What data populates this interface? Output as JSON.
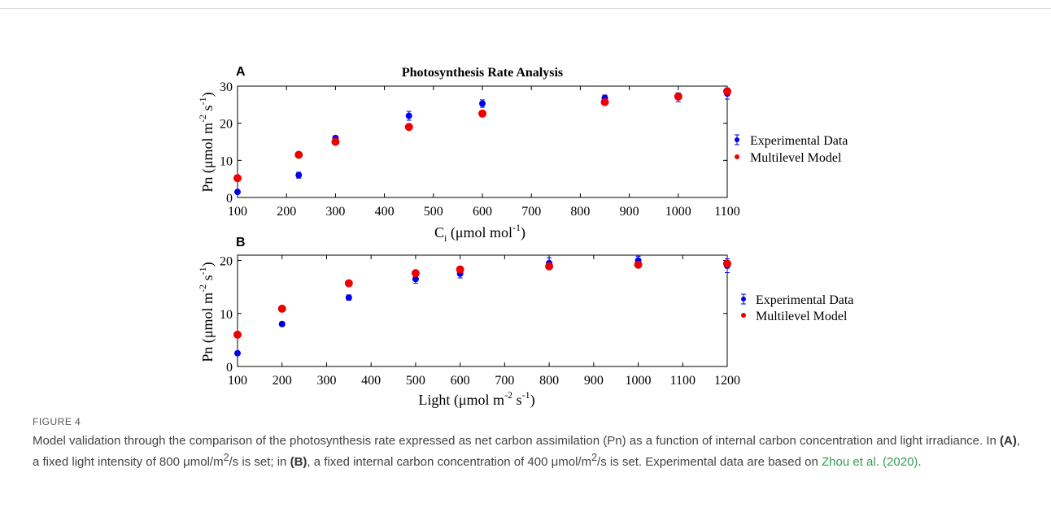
{
  "chart_data": [
    {
      "type": "scatter",
      "panel": "A",
      "title": "Photosynthesis Rate Analysis",
      "xlabel": "C_i (μmol mol^-1)",
      "ylabel": "Pn (μmol m^-2 s^-1)",
      "xlim": [
        100,
        1100
      ],
      "ylim": [
        0,
        30
      ],
      "xticks": [
        100,
        200,
        300,
        400,
        500,
        600,
        700,
        800,
        900,
        1000,
        1100
      ],
      "yticks": [
        0,
        10,
        20,
        30
      ],
      "grid": false,
      "legend_placement": "right",
      "series": [
        {
          "name": "Experimental Data",
          "color": "#0000ee",
          "points": [
            {
              "x": 100,
              "y": 1.5,
              "err": 0.4
            },
            {
              "x": 225,
              "y": 6.0,
              "err": 0.8
            },
            {
              "x": 300,
              "y": 16.0,
              "err": 0.6
            },
            {
              "x": 450,
              "y": 22.0,
              "err": 1.2
            },
            {
              "x": 600,
              "y": 25.3,
              "err": 1.0
            },
            {
              "x": 850,
              "y": 26.8,
              "err": 0.8
            },
            {
              "x": 1000,
              "y": 27.0,
              "err": 1.2
            },
            {
              "x": 1100,
              "y": 28.0,
              "err": 1.5
            }
          ]
        },
        {
          "name": "Multilevel Model",
          "color": "#ee0000",
          "points": [
            {
              "x": 100,
              "y": 5.2
            },
            {
              "x": 225,
              "y": 11.5
            },
            {
              "x": 300,
              "y": 15.0
            },
            {
              "x": 450,
              "y": 19.0
            },
            {
              "x": 600,
              "y": 22.6
            },
            {
              "x": 850,
              "y": 25.7
            },
            {
              "x": 1000,
              "y": 27.2
            },
            {
              "x": 1100,
              "y": 28.6
            }
          ]
        }
      ]
    },
    {
      "type": "scatter",
      "panel": "B",
      "xlabel": "Light (μmol m^-2 s^-1)",
      "ylabel": "Pn (μmol m^-2 s^-1)",
      "xlim": [
        100,
        1200
      ],
      "ylim": [
        0,
        21
      ],
      "xticks": [
        100,
        200,
        300,
        400,
        500,
        600,
        700,
        800,
        900,
        1000,
        1100,
        1200
      ],
      "yticks": [
        0,
        10,
        20
      ],
      "grid": false,
      "legend_placement": "right",
      "series": [
        {
          "name": "Experimental Data",
          "color": "#0000ee",
          "points": [
            {
              "x": 100,
              "y": 2.5,
              "err": 0.3
            },
            {
              "x": 200,
              "y": 8.0,
              "err": 0.4
            },
            {
              "x": 350,
              "y": 13.0,
              "err": 0.5
            },
            {
              "x": 500,
              "y": 16.5,
              "err": 0.8
            },
            {
              "x": 600,
              "y": 17.5,
              "err": 0.8
            },
            {
              "x": 800,
              "y": 19.5,
              "err": 1.0
            },
            {
              "x": 1000,
              "y": 20.0,
              "err": 0.8
            },
            {
              "x": 1200,
              "y": 19.0,
              "err": 1.3
            }
          ]
        },
        {
          "name": "Multilevel Model",
          "color": "#ee0000",
          "points": [
            {
              "x": 100,
              "y": 6.0
            },
            {
              "x": 200,
              "y": 10.9
            },
            {
              "x": 350,
              "y": 15.7
            },
            {
              "x": 500,
              "y": 17.6
            },
            {
              "x": 600,
              "y": 18.3
            },
            {
              "x": 800,
              "y": 18.9
            },
            {
              "x": 1000,
              "y": 19.2
            },
            {
              "x": 1200,
              "y": 19.4
            }
          ]
        }
      ]
    }
  ],
  "figure": {
    "panel_a_letter": "A",
    "panel_b_letter": "B",
    "xlabel_a": {
      "main": "C",
      "sub": "i",
      "rest": " (μmol mol",
      "sup": "-1",
      "close": ")"
    },
    "ylabel": {
      "a": "Pn (μmol m",
      "b": "-2",
      "c": " s",
      "d": "-1",
      "e": ")"
    },
    "xlabel_b": {
      "a": "Light (μmol m",
      "b": "-2",
      "c": " s",
      "d": "-1",
      "e": ")"
    }
  },
  "caption": {
    "label": "FIGURE 4",
    "part1": "Model validation through the comparison of the photosynthesis rate expressed as net carbon assimilation (Pn) as a function of internal carbon concentration and light irradiance. In ",
    "ref_a": "(A)",
    "part2": ", a fixed light intensity of 800 μmol/m",
    "sup1": "2",
    "part3": "/s is set; in ",
    "ref_b": "(B)",
    "part4": ", a fixed internal carbon concentration of 400 μmol/m",
    "sup2": "2",
    "part5": "/s is set. Experimental data are based on ",
    "citation": "Zhou et al. (2020)",
    "part6": "."
  }
}
